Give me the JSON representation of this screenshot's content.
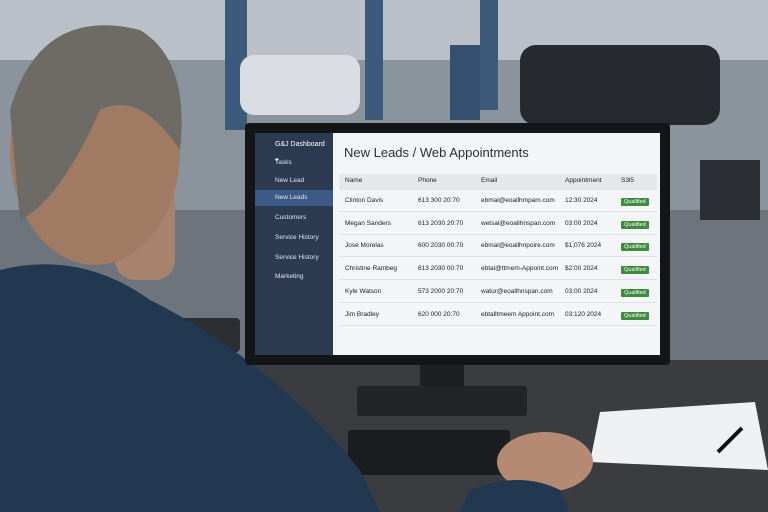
{
  "sidebar": {
    "title": "G&J Dashboard ▾",
    "items": [
      "Tasks",
      "New Lead",
      "New Leads",
      "Customers",
      "Service History",
      "Service History",
      "Marketing"
    ]
  },
  "table": {
    "title": "New Leads / Web Appointments",
    "headers": [
      "Name",
      "Phone",
      "Email",
      "Appointment",
      "S3l5"
    ],
    "rows": [
      [
        "Clinton Davis",
        "613 300 20:70",
        "ebmal@eoallhmpam.com",
        "12:30 2024",
        "Qualified"
      ],
      [
        "Megan Sanders",
        "613 2030 20:70",
        "wetsal@eoallhnspan.com",
        "03:00 2024",
        "Qualified"
      ],
      [
        "Jose Morelas",
        "600 2030 00:70",
        "ebmal@eoallhnpoire.com",
        "$1,076 2024",
        "Qualified"
      ],
      [
        "Christine Rambeg",
        "613 2030 00:70",
        "ebtal@ttmem-Appoint.com",
        "$2:00 2024",
        "Qualified"
      ],
      [
        "Kyle Watson",
        "573 2000 20:70",
        "watur@eoallhnspan.com",
        "03:00 2024",
        "Qualified"
      ],
      [
        "Jim Bradley",
        "620 000 20:70",
        "ebtalltmeem Appoint.com",
        "03:120 2024",
        "Qualified"
      ]
    ]
  }
}
